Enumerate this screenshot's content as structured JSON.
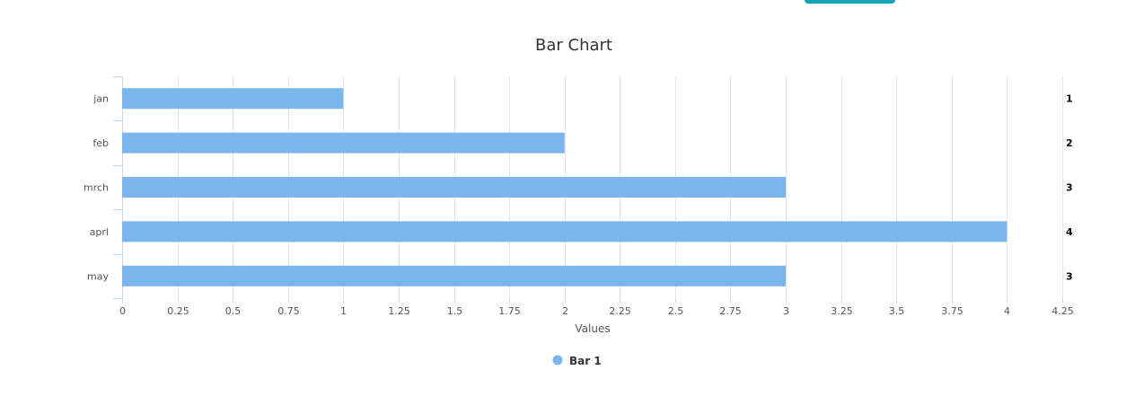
{
  "chart_data": {
    "type": "bar",
    "orientation": "horizontal",
    "title": "Bar Chart",
    "categories": [
      "jan",
      "feb",
      "mrch",
      "aprl",
      "may"
    ],
    "series": [
      {
        "name": "Bar 1",
        "values": [
          1,
          2,
          3,
          4,
          3
        ],
        "color": "#7cb5ec"
      }
    ],
    "xlabel": "Values",
    "ylabel": "",
    "xlim": [
      0,
      4.25
    ],
    "ticks": [
      "0",
      "0.25",
      "0.5",
      "0.75",
      "1",
      "1.25",
      "1.5",
      "1.75",
      "2",
      "2.25",
      "2.5",
      "2.75",
      "3",
      "3.25",
      "3.5",
      "3.75",
      "4",
      "4.25"
    ],
    "data_labels": [
      "1",
      "2",
      "3",
      "4",
      "3"
    ],
    "grid": true,
    "legend_position": "bottom-center"
  },
  "colors": {
    "accent": "#17a2b8",
    "bar": "#7cb5ec"
  }
}
